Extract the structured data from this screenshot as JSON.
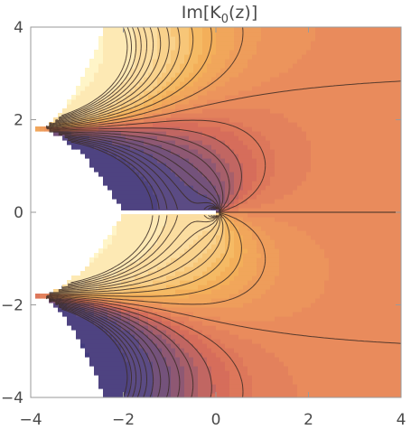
{
  "chart_data": {
    "type": "heatmap",
    "title": "Im[K0(z)]",
    "title_base": "Im[K",
    "title_sub": "0",
    "title_tail": "(z)]",
    "function": "Im[K0(z)]",
    "xlabel": "",
    "ylabel": "",
    "xlim": [
      -4,
      4
    ],
    "ylim": [
      -4,
      4
    ],
    "x_ticks": [
      -4,
      -2,
      0,
      2,
      4
    ],
    "y_ticks": [
      -4,
      -2,
      0,
      2,
      4
    ],
    "x_tick_labels": [
      "−4",
      "−2",
      "0",
      "2",
      "4"
    ],
    "y_tick_labels": [
      "−4",
      "−2",
      "0",
      "2",
      "4"
    ],
    "contour_style": "filled contours with dark contour lines",
    "colormap": "warm (light yellow → orange → dark blue)",
    "colors": {
      "high": "#fff5c8",
      "mid_high": "#f4b45a",
      "mid": "#ea8c5c",
      "mid_low": "#d56b5b",
      "low": "#5a4b84",
      "lowest": "#2a2a78",
      "contour_line": "#3c2c24",
      "frame": "#9a9a9a"
    },
    "features": {
      "branch_cut": "negative real axis (white gap)",
      "singular_point": [
        0,
        0
      ],
      "undefined_regions": "white regions on left near ±2i"
    }
  }
}
